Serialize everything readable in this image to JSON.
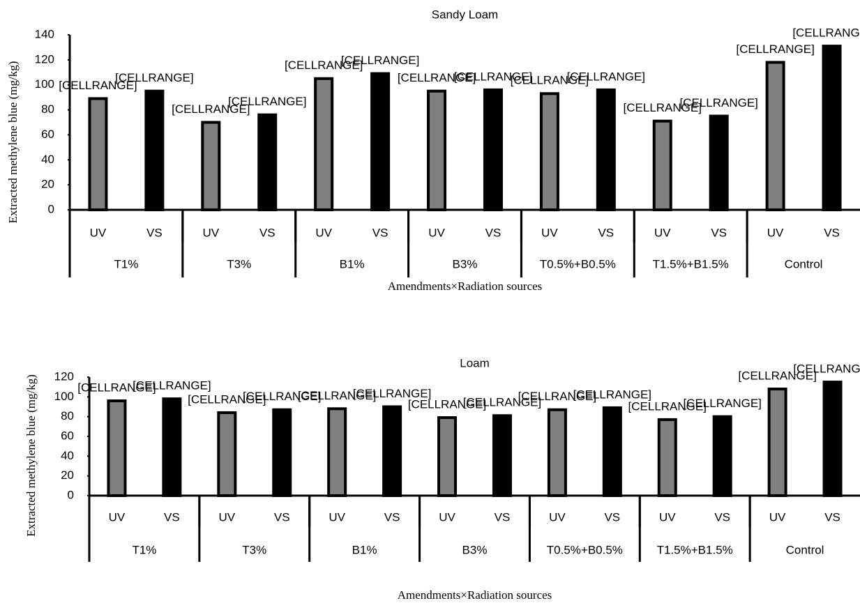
{
  "chart_data": [
    {
      "type": "bar",
      "title": "Sandy Loam",
      "xlabel": "Amendments×Radiation sources",
      "ylabel": "Extracted methylene blue (mg/kg)",
      "categories": [
        "UV",
        "VS",
        "UV",
        "VS",
        "UV",
        "VS",
        "UV",
        "VS",
        "UV",
        "VS",
        "UV",
        "VS",
        "UV",
        "VS"
      ],
      "groups": [
        "T1%",
        "T3%",
        "B1%",
        "B3%",
        "T0.5%+B0.5%",
        "T1.5%+B1.5%",
        "Control"
      ],
      "values": [
        89,
        95,
        70,
        76,
        105,
        109,
        95,
        96,
        93,
        96,
        71,
        75,
        118,
        131
      ],
      "value_labels": [
        "[CELLRANGE]",
        "[CELLRANGE]",
        "[CELLRANGE]",
        "[CELLRANGE]",
        "[CELLRANGE]",
        "[CELLRANGE]",
        "[CELLRANGE]",
        "[CELLRANGE]",
        "[CELLRANGE]",
        "[CELLRANGE]",
        "[CELLRANGE]",
        "[CELLRANGE]",
        "[CELLRANGE]",
        "[CELLRANGE]"
      ],
      "colors": [
        "#808080",
        "#000000"
      ],
      "ylim": [
        0,
        140
      ],
      "yticks": [
        0,
        20,
        40,
        60,
        80,
        100,
        120,
        140
      ]
    },
    {
      "type": "bar",
      "title": "Loam",
      "xlabel": "Amendments×Radiation sources",
      "ylabel": "Extracted methylene blue (mg/kg)",
      "categories": [
        "UV",
        "VS",
        "UV",
        "VS",
        "UV",
        "VS",
        "UV",
        "VS",
        "UV",
        "VS",
        "UV",
        "VS",
        "UV",
        "VS"
      ],
      "groups": [
        "T1%",
        "T3%",
        "B1%",
        "B3%",
        "T0.5%+B0.5%",
        "T1.5%+B1.5%",
        "Control"
      ],
      "values": [
        96,
        98,
        84,
        87,
        88,
        90,
        79,
        81,
        87,
        89,
        77,
        80,
        108,
        115
      ],
      "value_labels": [
        "[CELLRANGE]",
        "[CELLRANGE]",
        "[CELLRANGE]",
        "[CELLRANGE]",
        "[CELLRANGE]",
        "[CELLRANGE]",
        "[CELLRANGE]",
        "[CELLRANGE]",
        "[CELLRANGE]",
        "[CELLRANGE]",
        "[CELLRANGE]",
        "[CELLRANGE]",
        "[CELLRANGE]",
        "[CELLRANGE]"
      ],
      "colors": [
        "#808080",
        "#000000"
      ],
      "ylim": [
        0,
        120
      ],
      "yticks": [
        0,
        20,
        40,
        60,
        80,
        100,
        120
      ]
    }
  ]
}
